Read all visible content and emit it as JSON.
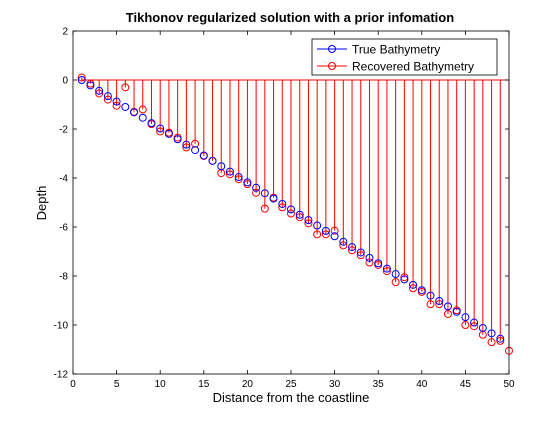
{
  "chart_data": {
    "type": "stem",
    "title": "Tikhonov regularized solution with a prior infomation",
    "xlabel": "Distance from the coastline",
    "ylabel": "Depth",
    "xlim": [
      0,
      50
    ],
    "ylim": [
      -12,
      2
    ],
    "xticks": [
      0,
      5,
      10,
      15,
      20,
      25,
      30,
      35,
      40,
      45,
      50
    ],
    "yticks": [
      2,
      0,
      -2,
      -4,
      -6,
      -8,
      -10,
      -12
    ],
    "grid": false,
    "legend_position": "top-right",
    "series": [
      {
        "name": "True Bathymetry",
        "color": "#0000ff",
        "marker": "circle",
        "stem_lines": false,
        "x": [
          1,
          2,
          3,
          4,
          5,
          6,
          7,
          8,
          9,
          10,
          11,
          12,
          13,
          14,
          15,
          16,
          17,
          18,
          19,
          20,
          21,
          22,
          23,
          24,
          25,
          26,
          27,
          28,
          29,
          30,
          31,
          32,
          33,
          34,
          35,
          36,
          37,
          38,
          39,
          40,
          41,
          42,
          43,
          44,
          45,
          46,
          47,
          48,
          49
        ],
        "values": [
          0.0,
          -0.22,
          -0.44,
          -0.66,
          -0.88,
          -1.1,
          -1.32,
          -1.54,
          -1.76,
          -1.98,
          -2.2,
          -2.42,
          -2.64,
          -2.86,
          -3.08,
          -3.3,
          -3.52,
          -3.74,
          -3.96,
          -4.18,
          -4.4,
          -4.62,
          -4.84,
          -5.06,
          -5.28,
          -5.5,
          -5.72,
          -5.94,
          -6.16,
          -6.38,
          -6.6,
          -6.82,
          -7.04,
          -7.26,
          -7.48,
          -7.7,
          -7.92,
          -8.14,
          -8.36,
          -8.58,
          -8.8,
          -9.02,
          -9.24,
          -9.46,
          -9.68,
          -9.9,
          -10.12,
          -10.34,
          -10.56
        ]
      },
      {
        "name": "Recovered Bathymetry",
        "color": "#ff0000",
        "marker": "circle",
        "stem_lines": true,
        "x": [
          1,
          2,
          3,
          4,
          5,
          6,
          7,
          8,
          9,
          10,
          11,
          12,
          13,
          14,
          15,
          16,
          17,
          18,
          19,
          20,
          21,
          22,
          23,
          24,
          25,
          26,
          27,
          28,
          29,
          30,
          31,
          32,
          33,
          34,
          35,
          36,
          37,
          38,
          39,
          40,
          41,
          42,
          43,
          44,
          45,
          46,
          47,
          48,
          49,
          50
        ],
        "values": [
          0.1,
          -0.15,
          -0.55,
          -0.8,
          -1.05,
          -0.3,
          -1.3,
          -1.2,
          -1.8,
          -2.1,
          -2.15,
          -2.35,
          -2.75,
          -2.6,
          -3.1,
          -3.3,
          -3.8,
          -3.85,
          -4.05,
          -4.25,
          -4.6,
          -5.25,
          -4.8,
          -5.2,
          -5.45,
          -5.6,
          -5.85,
          -6.3,
          -6.3,
          -6.15,
          -6.75,
          -6.95,
          -7.15,
          -7.45,
          -7.55,
          -7.8,
          -8.25,
          -8.05,
          -8.5,
          -8.65,
          -9.15,
          -9.15,
          -9.55,
          -9.4,
          -10.0,
          -10.05,
          -10.4,
          -10.7,
          -10.65,
          -11.05
        ]
      }
    ]
  }
}
